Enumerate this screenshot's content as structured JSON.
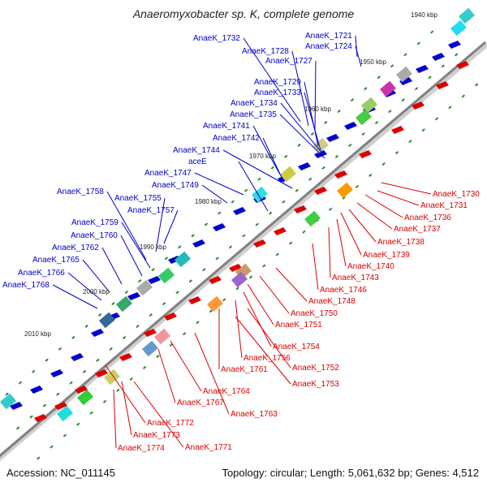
{
  "title": "Anaeromyxobacter sp. K, complete genome",
  "footer": {
    "accession": "Accession: NC_011145",
    "info": "Topology: circular; Length: 5,061,632 bp; Genes: 4,512"
  },
  "ticks": [
    "1940 kbp",
    "1950 kbp",
    "1960 kbp",
    "1970 kbp",
    "1980 kbp",
    "1990 kbp",
    "2000 kbp",
    "2010 kbp"
  ],
  "forward_labels": [
    "AnaeK_1721",
    "AnaeK_1724",
    "AnaeK_1732",
    "AnaeK_1728",
    "AnaeK_1727",
    "AnaeK_1729",
    "AnaeK_1733",
    "AnaeK_1734",
    "AnaeK_1735",
    "AnaeK_1741",
    "AnaeK_1742",
    "AnaeK_1744",
    "aceE",
    "AnaeK_1747",
    "AnaeK_1749",
    "AnaeK_1758",
    "AnaeK_1755",
    "AnaeK_1757",
    "AnaeK_1759",
    "AnaeK_1760",
    "AnaeK_1762",
    "AnaeK_1765",
    "AnaeK_1766",
    "AnaeK_1768"
  ],
  "reverse_labels": [
    "AnaeK_1730",
    "AnaeK_1731",
    "AnaeK_1736",
    "AnaeK_1737",
    "AnaeK_1738",
    "AnaeK_1739",
    "AnaeK_1740",
    "AnaeK_1743",
    "AnaeK_1746",
    "AnaeK_1748",
    "AnaeK_1750",
    "AnaeK_1751",
    "AnaeK_1754",
    "AnaeK_1756",
    "AnaeK_1752",
    "AnaeK_1761",
    "AnaeK_1753",
    "AnaeK_1764",
    "AnaeK_1767",
    "AnaeK_1763",
    "AnaeK_1772",
    "AnaeK_1773",
    "AnaeK_1774",
    "AnaeK_1771"
  ],
  "colors": {
    "forward": "#0000cc",
    "reverse": "#dd0000",
    "backbone": "#777777",
    "dots": "#2a8a2a"
  }
}
